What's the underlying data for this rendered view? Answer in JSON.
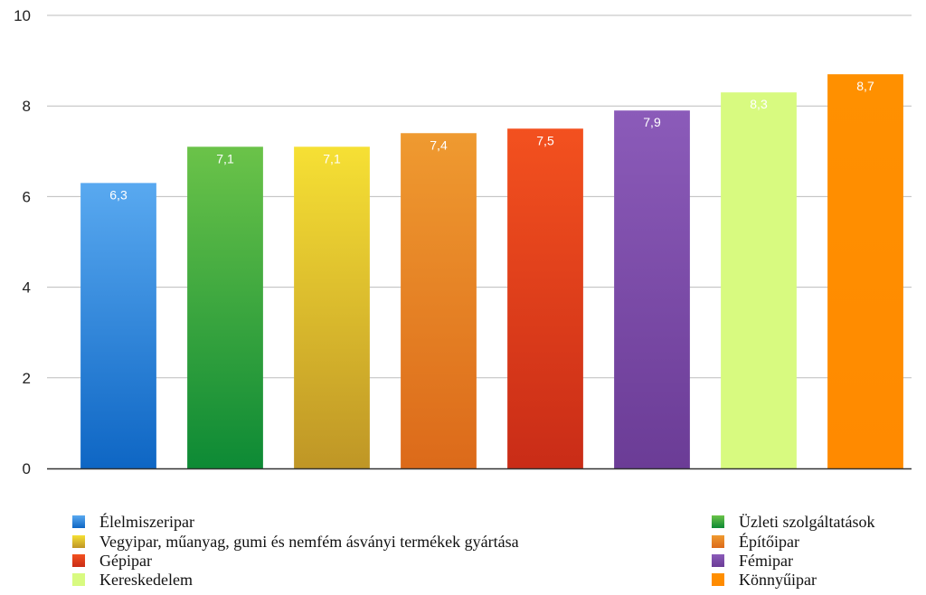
{
  "chart_data": {
    "type": "bar",
    "title": "",
    "xlabel": "",
    "ylabel": "",
    "ylim": [
      0,
      10
    ],
    "yticks": [
      0,
      2,
      4,
      6,
      8,
      10
    ],
    "grid": true,
    "legend_placement": "bottom",
    "categories": [
      "Élelmiszeripar",
      "Üzleti szolgáltatások",
      "Vegyipar, műanyag, gumi és nemfém ásványi termékek gyártása",
      "Építőipar",
      "Gépipar",
      "Fémipar",
      "Kereskedelem",
      "Könnyűipar"
    ],
    "values": [
      6.3,
      7.1,
      7.1,
      7.4,
      7.5,
      7.9,
      8.3,
      8.7
    ],
    "data_labels": [
      "6,3",
      "7,1",
      "7,1",
      "7,4",
      "7,5",
      "7,9",
      "8,3",
      "8,7"
    ],
    "colors": [
      {
        "top": "#59a9f0",
        "bottom": "#0e66c4"
      },
      {
        "top": "#6bc349",
        "bottom": "#0d8a35"
      },
      {
        "top": "#f6e034",
        "bottom": "#bf9626"
      },
      {
        "top": "#ef9a30",
        "bottom": "#dc6a1a"
      },
      {
        "top": "#f3511f",
        "bottom": "#c92c17"
      },
      {
        "top": "#8b5bb9",
        "bottom": "#6b3c96"
      },
      {
        "top": "#d8fa80",
        "bottom": "#d8fa80"
      },
      {
        "top": "#ff9000",
        "bottom": "#ff8a00"
      }
    ],
    "legend": {
      "left": [
        0,
        2,
        4,
        6
      ],
      "right": [
        1,
        3,
        5,
        7
      ]
    }
  }
}
